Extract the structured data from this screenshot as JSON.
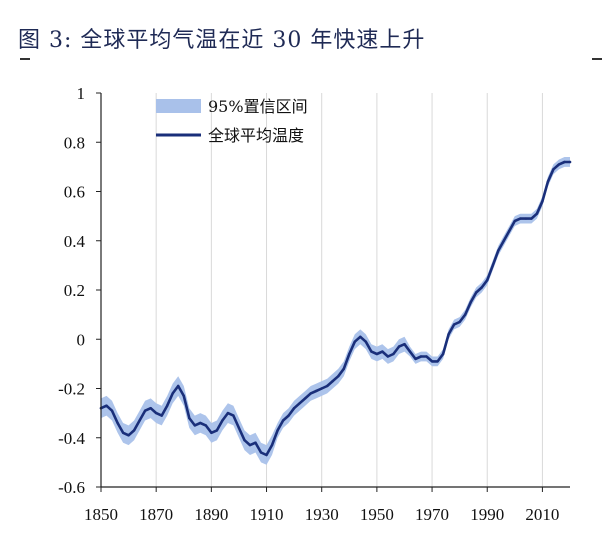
{
  "figure": {
    "title": "图  3:  全球平均气温在近 30 年快速上升"
  },
  "colors": {
    "line": "#1a2f7a",
    "band": "#a9c1ea",
    "grid": "#d9d9d9",
    "axis": "#222222"
  },
  "chart_data": {
    "type": "line",
    "title": "",
    "xlabel": "",
    "ylabel": "",
    "xlim": [
      1850,
      2020
    ],
    "ylim": [
      -0.6,
      1
    ],
    "grid": "vertical",
    "legend_position": "top-left",
    "x_ticks": [
      "1850",
      "1870",
      "1890",
      "1910",
      "1930",
      "1950",
      "1970",
      "1990",
      "2010"
    ],
    "y_ticks": [
      "1",
      "0.8",
      "0.6",
      "0.4",
      "0.2",
      "0",
      "-0.2",
      "-0.4",
      "-0.6"
    ],
    "legend": [
      "95%置信区间",
      "全球平均温度"
    ],
    "series": [
      {
        "name": "全球平均温度",
        "x": [
          1850,
          1852,
          1854,
          1856,
          1858,
          1860,
          1862,
          1864,
          1866,
          1868,
          1870,
          1872,
          1874,
          1876,
          1878,
          1880,
          1882,
          1884,
          1886,
          1888,
          1890,
          1892,
          1894,
          1896,
          1898,
          1900,
          1902,
          1904,
          1906,
          1908,
          1910,
          1912,
          1914,
          1916,
          1918,
          1920,
          1922,
          1924,
          1926,
          1928,
          1930,
          1932,
          1934,
          1936,
          1938,
          1940,
          1942,
          1944,
          1946,
          1948,
          1950,
          1952,
          1954,
          1956,
          1958,
          1960,
          1962,
          1964,
          1966,
          1968,
          1970,
          1972,
          1974,
          1976,
          1978,
          1980,
          1982,
          1984,
          1986,
          1988,
          1990,
          1992,
          1994,
          1996,
          1998,
          2000,
          2002,
          2004,
          2006,
          2008,
          2010,
          2012,
          2014,
          2016,
          2018,
          2020
        ],
        "values": [
          -0.28,
          -0.27,
          -0.29,
          -0.34,
          -0.38,
          -0.39,
          -0.37,
          -0.33,
          -0.29,
          -0.28,
          -0.3,
          -0.31,
          -0.27,
          -0.22,
          -0.19,
          -0.23,
          -0.32,
          -0.35,
          -0.34,
          -0.35,
          -0.38,
          -0.37,
          -0.33,
          -0.3,
          -0.31,
          -0.36,
          -0.41,
          -0.43,
          -0.42,
          -0.46,
          -0.47,
          -0.43,
          -0.37,
          -0.33,
          -0.31,
          -0.28,
          -0.26,
          -0.24,
          -0.22,
          -0.21,
          -0.2,
          -0.19,
          -0.17,
          -0.15,
          -0.12,
          -0.06,
          -0.01,
          0.01,
          -0.01,
          -0.05,
          -0.06,
          -0.05,
          -0.07,
          -0.06,
          -0.03,
          -0.02,
          -0.05,
          -0.08,
          -0.07,
          -0.07,
          -0.09,
          -0.09,
          -0.06,
          0.02,
          0.06,
          0.07,
          0.1,
          0.15,
          0.19,
          0.21,
          0.24,
          0.3,
          0.36,
          0.4,
          0.44,
          0.48,
          0.49,
          0.49,
          0.49,
          0.51,
          0.56,
          0.64,
          0.69,
          0.71,
          0.72,
          0.72
        ]
      }
    ],
    "confidence_band_width": [
      0.04,
      0.04,
      0.04,
      0.04,
      0.04,
      0.04,
      0.04,
      0.04,
      0.04,
      0.04,
      0.04,
      0.04,
      0.04,
      0.04,
      0.04,
      0.04,
      0.04,
      0.04,
      0.04,
      0.04,
      0.04,
      0.04,
      0.04,
      0.04,
      0.04,
      0.04,
      0.04,
      0.04,
      0.04,
      0.04,
      0.04,
      0.04,
      0.03,
      0.03,
      0.03,
      0.03,
      0.03,
      0.03,
      0.03,
      0.03,
      0.03,
      0.03,
      0.03,
      0.03,
      0.03,
      0.03,
      0.03,
      0.03,
      0.03,
      0.03,
      0.03,
      0.03,
      0.03,
      0.03,
      0.03,
      0.03,
      0.02,
      0.02,
      0.02,
      0.02,
      0.02,
      0.02,
      0.02,
      0.02,
      0.02,
      0.02,
      0.02,
      0.02,
      0.02,
      0.02,
      0.02,
      0.02,
      0.02,
      0.02,
      0.02,
      0.02,
      0.02,
      0.02,
      0.02,
      0.02,
      0.02,
      0.02,
      0.02,
      0.02,
      0.02,
      0.02
    ]
  }
}
